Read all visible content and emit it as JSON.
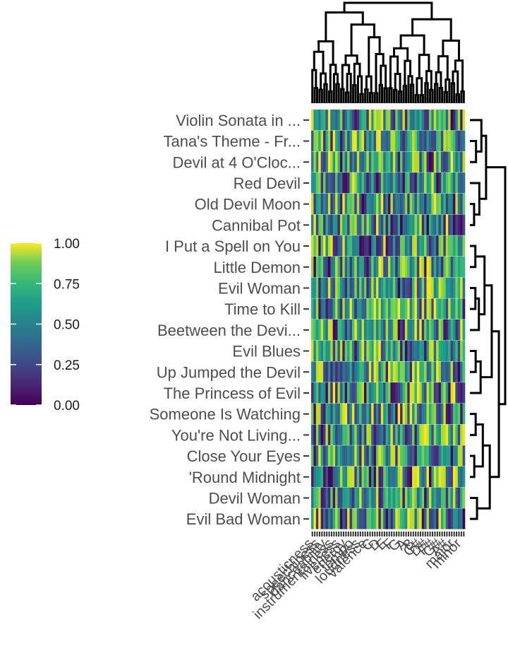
{
  "chart_data": {
    "type": "heatmap",
    "colormap": "viridis",
    "color_range": [
      0,
      1
    ],
    "colors": {
      "low": "#440154",
      "mid_low": "#3b528b",
      "mid": "#21918c",
      "mid_high": "#5ec962",
      "high": "#fde725"
    },
    "rows": [
      "Violin Sonata in ...",
      "Tana's Theme - Fr...",
      "Devil at 4 O'Cloc...",
      "Red Devil",
      "Old Devil Moon",
      "Cannibal Pot",
      "I Put a Spell on You",
      "Little Demon",
      "Evil Woman",
      "Time to Kill",
      "Beetween the Devi...",
      "Evil Blues",
      "Up Jumped the Devil",
      "The Princess of Evil",
      "Someone Is Watching",
      "You're Not Living...",
      "Close Your Eyes",
      "'Round Midnight",
      "Devil Woman",
      "Evil Bad Woman"
    ],
    "column_count": 64,
    "column_labels": [
      "acousticness",
      "speechiness",
      "danceability",
      "instrumentalness",
      "liveness",
      "energy",
      "tempo",
      "loudness",
      "valence",
      "C",
      "D",
      "E",
      "F",
      "G",
      "A",
      "B",
      "C#",
      "D#",
      "F#",
      "G#",
      "A#",
      "major",
      "minor"
    ],
    "legend": {
      "ticks": [
        "0.00",
        "0.25",
        "0.50",
        "0.75",
        "1.00"
      ],
      "tick_values": [
        0,
        0.25,
        0.5,
        0.75,
        1
      ]
    },
    "row_dendrogram": true,
    "column_dendrogram": true,
    "legend_position": "left"
  }
}
